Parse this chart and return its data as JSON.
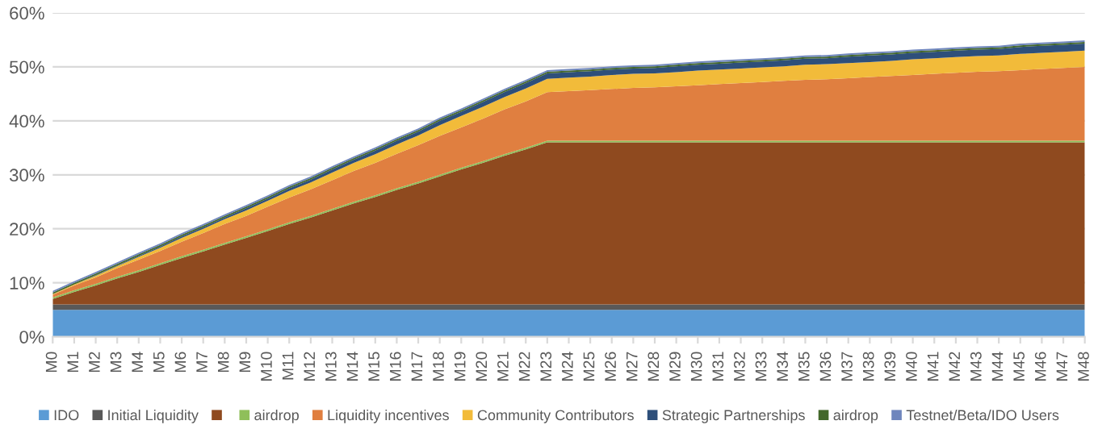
{
  "chart_data": {
    "type": "area",
    "stacked": true,
    "categories": [
      "M0",
      "M1",
      "M2",
      "M3",
      "M4",
      "M5",
      "M6",
      "M7",
      "M8",
      "M9",
      "M10",
      "M11",
      "M12",
      "M13",
      "M14",
      "M15",
      "M16",
      "M17",
      "M18",
      "M19",
      "M20",
      "M21",
      "M22",
      "M23",
      "M24",
      "M25",
      "M26",
      "M27",
      "M28",
      "M29",
      "M30",
      "M31",
      "M32",
      "M33",
      "M34",
      "M35",
      "M36",
      "M37",
      "M38",
      "M39",
      "M40",
      "M41",
      "M42",
      "M43",
      "M44",
      "M45",
      "M46",
      "M47",
      "M48"
    ],
    "ylim": [
      0,
      60
    ],
    "yticks": [
      {
        "value": 0,
        "label": "0%"
      },
      {
        "value": 10,
        "label": "10%"
      },
      {
        "value": 20,
        "label": "20%"
      },
      {
        "value": 30,
        "label": "30%"
      },
      {
        "value": 40,
        "label": "40%"
      },
      {
        "value": 50,
        "label": "50%"
      },
      {
        "value": 60,
        "label": "60%"
      }
    ],
    "grid": "y",
    "legend": "bottom",
    "series": [
      {
        "name": "IDO",
        "color": "#5b9bd5",
        "values": [
          5,
          5,
          5,
          5,
          5,
          5,
          5,
          5,
          5,
          5,
          5,
          5,
          5,
          5,
          5,
          5,
          5,
          5,
          5,
          5,
          5,
          5,
          5,
          5,
          5,
          5,
          5,
          5,
          5,
          5,
          5,
          5,
          5,
          5,
          5,
          5,
          5,
          5,
          5,
          5,
          5,
          5,
          5,
          5,
          5,
          5,
          5,
          5,
          5
        ]
      },
      {
        "name": "Initial Liquidity",
        "color": "#595959",
        "values": [
          1,
          1,
          1,
          1,
          1,
          1,
          1,
          1,
          1,
          1,
          1,
          1,
          1,
          1,
          1,
          1,
          1,
          1,
          1,
          1,
          1,
          1,
          1,
          1,
          1,
          1,
          1,
          1,
          1,
          1,
          1,
          1,
          1,
          1,
          1,
          1,
          1,
          1,
          1,
          1,
          1,
          1,
          1,
          1,
          1,
          1,
          1,
          1,
          1
        ]
      },
      {
        "color": "#8f4a1f",
        "values": [
          1,
          2.3,
          3.5,
          4.8,
          6,
          7.3,
          8.6,
          9.8,
          11.1,
          12.3,
          13.6,
          14.9,
          16.1,
          17.4,
          18.7,
          19.9,
          21.2,
          22.4,
          23.7,
          25,
          26.2,
          27.5,
          28.7,
          30,
          30,
          30,
          30,
          30,
          30,
          30,
          30,
          30,
          30,
          30,
          30,
          30,
          30,
          30,
          30,
          30,
          30,
          30,
          30,
          30,
          30,
          30,
          30,
          30,
          30
        ]
      },
      {
        "name": "airdrop",
        "color": "#8fbf5a",
        "values": [
          0.3,
          0.3,
          0.3,
          0.3,
          0.3,
          0.3,
          0.3,
          0.3,
          0.3,
          0.3,
          0.3,
          0.3,
          0.3,
          0.3,
          0.3,
          0.3,
          0.3,
          0.3,
          0.3,
          0.3,
          0.3,
          0.3,
          0.3,
          0.3,
          0.3,
          0.3,
          0.3,
          0.3,
          0.3,
          0.3,
          0.3,
          0.3,
          0.3,
          0.3,
          0.3,
          0.3,
          0.3,
          0.3,
          0.3,
          0.3,
          0.3,
          0.3,
          0.3,
          0.3,
          0.3,
          0.3,
          0.3,
          0.3,
          0.3
        ]
      },
      {
        "name": "Liquidity incentives",
        "color": "#e07f40",
        "values": [
          0.5,
          0.9,
          1.2,
          1.6,
          2,
          2.3,
          2.7,
          3.1,
          3.5,
          3.8,
          4.2,
          4.6,
          4.9,
          5.3,
          5.7,
          6,
          6.4,
          6.8,
          7.2,
          7.5,
          7.9,
          8.3,
          8.6,
          9,
          9.2,
          9.4,
          9.6,
          9.8,
          9.9,
          10.1,
          10.3,
          10.5,
          10.7,
          10.9,
          11.1,
          11.3,
          11.4,
          11.6,
          11.8,
          12,
          12.2,
          12.4,
          12.6,
          12.8,
          12.9,
          13.1,
          13.3,
          13.5,
          13.7
        ]
      },
      {
        "name": "Community Contributors",
        "color": "#f2bb3a",
        "values": [
          0.1,
          0.2,
          0.3,
          0.4,
          0.5,
          0.6,
          0.7,
          0.8,
          0.9,
          1,
          1.1,
          1.2,
          1.3,
          1.4,
          1.5,
          1.6,
          1.7,
          1.8,
          2,
          2.1,
          2.2,
          2.3,
          2.4,
          2.5,
          2.5,
          2.5,
          2.6,
          2.6,
          2.6,
          2.6,
          2.7,
          2.7,
          2.7,
          2.7,
          2.7,
          2.8,
          2.8,
          2.8,
          2.8,
          2.8,
          2.9,
          2.9,
          2.9,
          2.9,
          2.9,
          3,
          3,
          3,
          3
        ]
      },
      {
        "name": "Strategic Partnerships",
        "color": "#2e4f7a",
        "values": [
          0,
          0,
          0.1,
          0.1,
          0.2,
          0.2,
          0.3,
          0.3,
          0.3,
          0.4,
          0.4,
          0.5,
          0.5,
          0.6,
          0.6,
          0.7,
          0.7,
          0.7,
          0.8,
          0.8,
          0.9,
          0.9,
          1,
          1,
          1,
          1,
          1,
          1,
          1,
          1.1,
          1.1,
          1.1,
          1.1,
          1.1,
          1.1,
          1.1,
          1.1,
          1.2,
          1.2,
          1.2,
          1.2,
          1.2,
          1.2,
          1.2,
          1.2,
          1.3,
          1.3,
          1.3,
          1.3
        ]
      },
      {
        "name": "airdrop",
        "color": "#43682b",
        "values": [
          0.3,
          0.3,
          0.3,
          0.3,
          0.3,
          0.3,
          0.3,
          0.3,
          0.3,
          0.3,
          0.3,
          0.3,
          0.3,
          0.3,
          0.3,
          0.3,
          0.3,
          0.3,
          0.3,
          0.3,
          0.3,
          0.3,
          0.3,
          0.3,
          0.3,
          0.3,
          0.3,
          0.3,
          0.3,
          0.3,
          0.3,
          0.3,
          0.3,
          0.3,
          0.3,
          0.3,
          0.3,
          0.3,
          0.3,
          0.3,
          0.3,
          0.3,
          0.3,
          0.3,
          0.3,
          0.3,
          0.3,
          0.3,
          0.3
        ]
      },
      {
        "name": "Testnet/Beta/IDO Users",
        "color": "#6f86bd",
        "values": [
          0.3,
          0.3,
          0.3,
          0.3,
          0.3,
          0.3,
          0.3,
          0.3,
          0.3,
          0.3,
          0.3,
          0.3,
          0.3,
          0.3,
          0.3,
          0.3,
          0.3,
          0.3,
          0.3,
          0.3,
          0.3,
          0.3,
          0.3,
          0.3,
          0.3,
          0.3,
          0.3,
          0.3,
          0.3,
          0.3,
          0.3,
          0.3,
          0.3,
          0.3,
          0.3,
          0.3,
          0.3,
          0.3,
          0.3,
          0.3,
          0.3,
          0.3,
          0.3,
          0.3,
          0.3,
          0.3,
          0.3,
          0.3,
          0.3
        ]
      }
    ]
  }
}
